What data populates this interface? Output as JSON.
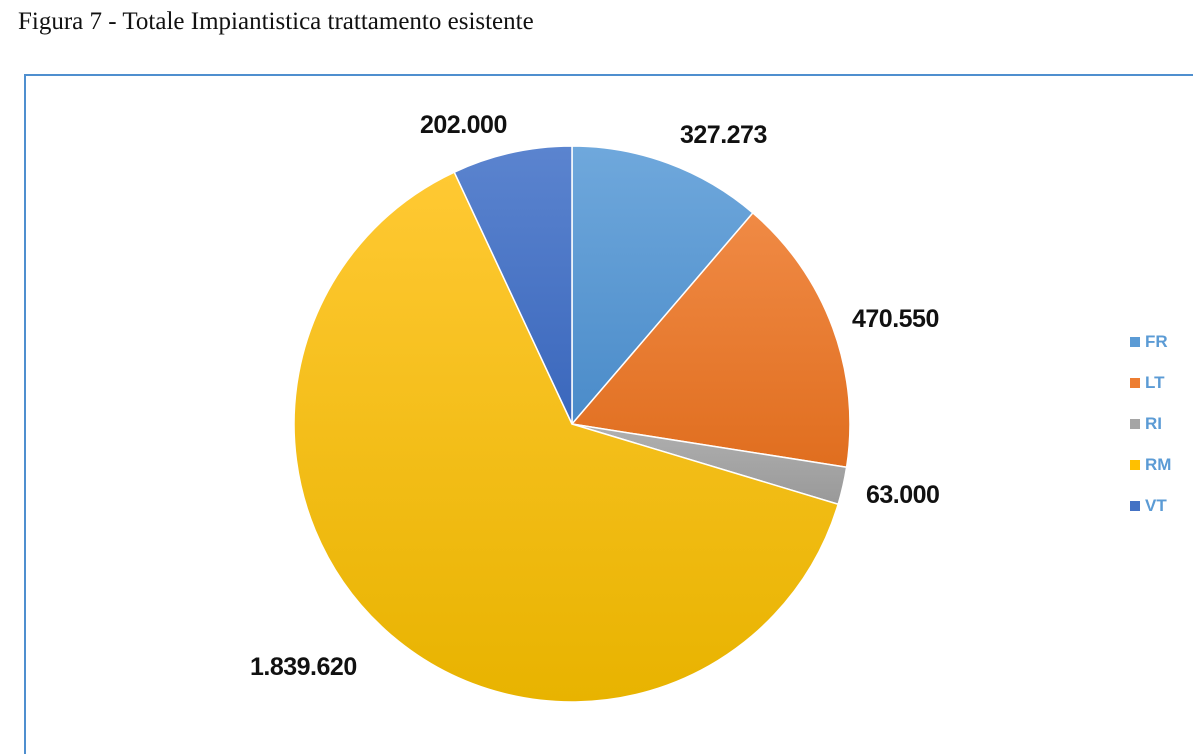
{
  "caption": "Figura 7 - Totale Impiantistica trattamento esistente",
  "chart_data": {
    "type": "pie",
    "title": "",
    "categories": [
      "FR",
      "LT",
      "RI",
      "RM",
      "VT"
    ],
    "values": [
      327273,
      470550,
      63000,
      1839620,
      202000
    ],
    "data_labels": [
      "327.273",
      "470.550",
      "63.000",
      "1.839.620",
      "202.000"
    ],
    "colors": [
      "#5b9bd5",
      "#ed7d31",
      "#a5a5a5",
      "#ffc000",
      "#4472c4"
    ],
    "start_angle_deg": 0,
    "direction": "clockwise",
    "legend_position": "right",
    "legend_colors": [
      "#5b9bd5",
      "#ed7d31",
      "#a5a5a5",
      "#ffc000",
      "#4472c4"
    ]
  }
}
